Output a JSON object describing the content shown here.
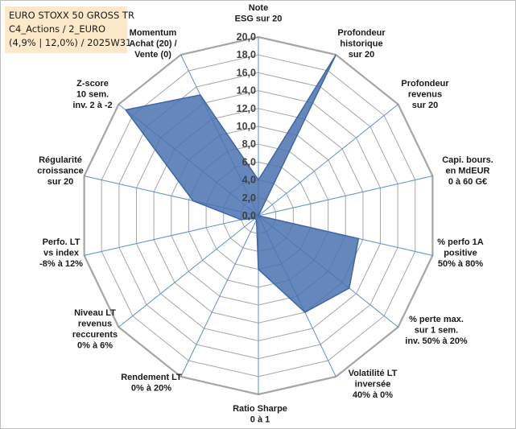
{
  "title_box": {
    "line1": "EURO STOXX 50 GROSS TR",
    "line2": "C4_Actions / 2_EURO",
    "line3": "(4,9% | 12,0%) / 2025W31"
  },
  "colors": {
    "fill": "#4a72b0",
    "stroke": "#3f67a6",
    "spokes": "#5b8fd0",
    "grid": "#a6a6a6",
    "title_box_bg": "#fde9c9"
  },
  "chart_data": {
    "type": "radar",
    "r_min": 0,
    "r_max": 20,
    "r_step": 2,
    "grid": true,
    "ticks": [
      "0,0",
      "2,0",
      "4,0",
      "6,0",
      "8,0",
      "10,0",
      "12,0",
      "14,0",
      "16,0",
      "18,0",
      "20,0"
    ],
    "axes": [
      {
        "label": [
          "Note",
          "ESG sur 20"
        ]
      },
      {
        "label": [
          "Profondeur",
          "historique",
          "sur 20"
        ]
      },
      {
        "label": [
          "Profondeur",
          "revenus",
          "sur 20"
        ]
      },
      {
        "label": [
          "Capi. bours.",
          "en MdEUR",
          "0 à 60 G€"
        ]
      },
      {
        "label": [
          "% perfo 1A",
          "positive",
          "50% à 80%"
        ]
      },
      {
        "label": [
          "% perte max.",
          "sur 1 sem.",
          "inv. 50% à 20%"
        ]
      },
      {
        "label": [
          "Volatilité LT",
          "inversée",
          "40% à 0%"
        ]
      },
      {
        "label": [
          "Ratio Sharpe",
          "0 à 1"
        ]
      },
      {
        "label": [
          "Rendement LT",
          "0% à 20%"
        ]
      },
      {
        "label": [
          "Niveau LT",
          "revenus",
          "reccurents",
          "0% à 6%"
        ]
      },
      {
        "label": [
          "Perfo. LT",
          "vs index",
          "-8% à 12%"
        ]
      },
      {
        "label": [
          "Régularité",
          "croissance",
          "sur 20"
        ]
      },
      {
        "label": [
          "Z-score",
          "10 sem.",
          "inv. 2 à -2"
        ]
      },
      {
        "label": [
          "Momentum",
          "Achat (20) /",
          "Vente (0)"
        ]
      }
    ],
    "series": [
      {
        "values": [
          4.0,
          20.0,
          0.0,
          0.0,
          11.5,
          13.0,
          12.0,
          6.0,
          0.5,
          0.5,
          2.0,
          7.5,
          19.0,
          15.0
        ]
      }
    ]
  }
}
